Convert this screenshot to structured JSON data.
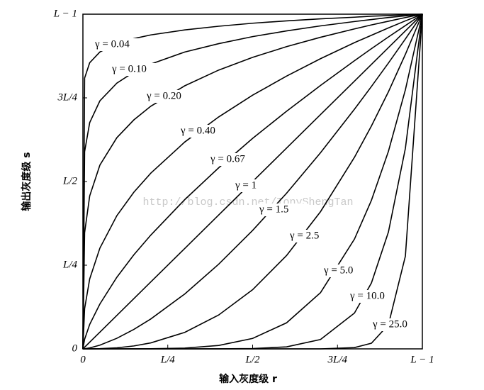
{
  "chart_data": {
    "type": "line",
    "xlabel": "输入灰度级 r",
    "ylabel": "输出灰度级 s",
    "watermark": "http://blog.csdn.net/TonyShengTan",
    "xlim": [
      0,
      1
    ],
    "ylim": [
      0,
      1
    ],
    "xticks": [
      0,
      {
        "value": 0.25,
        "label": "L/4"
      },
      {
        "value": 0.5,
        "label": "L/2"
      },
      {
        "value": 0.75,
        "label": "3L/4"
      },
      {
        "value": 1,
        "label": "L − 1"
      }
    ],
    "yticks": [
      0,
      {
        "value": 0.25,
        "label": "L/4"
      },
      {
        "value": 0.5,
        "label": "L/2"
      },
      {
        "value": 0.75,
        "label": "3L/4"
      },
      {
        "value": 1,
        "label": "L − 1"
      }
    ],
    "x": [
      0,
      0.005,
      0.02,
      0.05,
      0.1,
      0.15,
      0.2,
      0.3,
      0.4,
      0.5,
      0.6,
      0.7,
      0.8,
      0.85,
      0.9,
      0.95,
      1
    ],
    "series": [
      {
        "name": "γ = 0.04",
        "color": "#000000",
        "values": [
          0,
          0.809,
          0.855,
          0.887,
          0.912,
          0.927,
          0.938,
          0.953,
          0.964,
          0.973,
          0.98,
          0.986,
          0.991,
          0.994,
          0.996,
          0.998,
          1
        ]
      },
      {
        "name": "γ = 0.10",
        "color": "#000000",
        "values": [
          0,
          0.589,
          0.676,
          0.741,
          0.794,
          0.827,
          0.851,
          0.887,
          0.912,
          0.933,
          0.95,
          0.965,
          0.978,
          0.984,
          0.99,
          0.995,
          1
        ]
      },
      {
        "name": "γ = 0.20",
        "color": "#000000",
        "values": [
          0,
          0.347,
          0.457,
          0.549,
          0.631,
          0.684,
          0.725,
          0.786,
          0.833,
          0.871,
          0.903,
          0.931,
          0.956,
          0.968,
          0.979,
          0.99,
          1
        ]
      },
      {
        "name": "γ = 0.40",
        "color": "#000000",
        "values": [
          0,
          0.12,
          0.209,
          0.301,
          0.398,
          0.468,
          0.525,
          0.618,
          0.693,
          0.758,
          0.815,
          0.867,
          0.915,
          0.937,
          0.959,
          0.98,
          1
        ]
      },
      {
        "name": "γ = 0.67",
        "color": "#000000",
        "values": [
          0,
          0.0287,
          0.073,
          0.134,
          0.214,
          0.281,
          0.34,
          0.446,
          0.541,
          0.629,
          0.71,
          0.787,
          0.861,
          0.897,
          0.932,
          0.966,
          1
        ]
      },
      {
        "name": "γ = 1",
        "color": "#000000",
        "values": [
          0,
          0.005,
          0.02,
          0.05,
          0.1,
          0.15,
          0.2,
          0.3,
          0.4,
          0.5,
          0.6,
          0.7,
          0.8,
          0.85,
          0.9,
          0.95,
          1
        ]
      },
      {
        "name": "γ = 1.5",
        "color": "#000000",
        "values": [
          0,
          0.0004,
          0.0028,
          0.0112,
          0.0316,
          0.0581,
          0.0894,
          0.164,
          0.253,
          0.354,
          0.465,
          0.586,
          0.716,
          0.784,
          0.854,
          0.926,
          1
        ]
      },
      {
        "name": "γ = 2.5",
        "color": "#000000",
        "values": [
          0,
          0,
          0.0001,
          0.0006,
          0.0032,
          0.0087,
          0.0179,
          0.0493,
          0.1012,
          0.1768,
          0.2789,
          0.41,
          0.5724,
          0.666,
          0.768,
          0.88,
          1
        ]
      },
      {
        "name": "γ = 5.0",
        "color": "#000000",
        "values": [
          0,
          0,
          0,
          0,
          0,
          0.0001,
          0.0003,
          0.0024,
          0.0102,
          0.0313,
          0.0778,
          0.168,
          0.328,
          0.444,
          0.59,
          0.774,
          1
        ]
      },
      {
        "name": "γ = 10.0",
        "color": "#000000",
        "values": [
          0,
          0,
          0,
          0,
          0,
          0,
          0,
          0,
          0.0001,
          0.001,
          0.006,
          0.028,
          0.107,
          0.197,
          0.349,
          0.599,
          1
        ]
      },
      {
        "name": "γ = 25.0",
        "color": "#000000",
        "values": [
          0,
          0,
          0,
          0,
          0,
          0,
          0,
          0,
          0,
          0,
          0,
          0,
          0.0038,
          0.017,
          0.072,
          0.277,
          1
        ]
      }
    ]
  }
}
